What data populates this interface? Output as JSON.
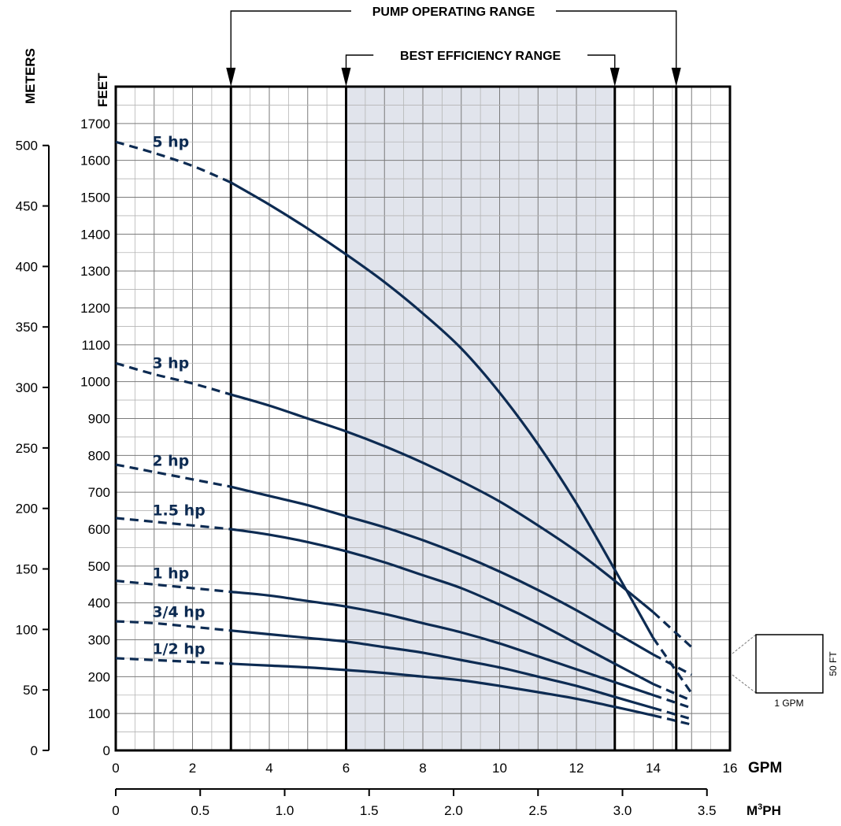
{
  "chart_data": {
    "type": "line",
    "x_axis": {
      "label": "GPM",
      "min": 0,
      "max": 16,
      "ticks": [
        0,
        2,
        4,
        6,
        8,
        10,
        12,
        14,
        16
      ]
    },
    "x_axis_secondary": {
      "label_prefix": "M",
      "label_superscript": "3",
      "label_suffix": "PH",
      "ticks": [
        {
          "label": "0",
          "gpm": 0
        },
        {
          "label": "0.5",
          "gpm": 2.2
        },
        {
          "label": "1.0",
          "gpm": 4.4
        },
        {
          "label": "1.5",
          "gpm": 6.6
        },
        {
          "label": "2.0",
          "gpm": 8.8
        },
        {
          "label": "2.5",
          "gpm": 11.0
        },
        {
          "label": "3.0",
          "gpm": 13.2
        },
        {
          "label": "3.5",
          "gpm": 15.4
        }
      ]
    },
    "y_axis": {
      "label": "FEET",
      "min": 0,
      "max": 1800,
      "ticks": [
        0,
        100,
        200,
        300,
        400,
        500,
        600,
        700,
        800,
        900,
        1000,
        1100,
        1200,
        1300,
        1400,
        1500,
        1600,
        1700
      ]
    },
    "y_axis_secondary": {
      "label": "METERS",
      "ticks": [
        0,
        50,
        100,
        150,
        200,
        250,
        300,
        350,
        400,
        450,
        500
      ]
    },
    "grid": true,
    "ranges": [
      {
        "label": "PUMP OPERATING RANGE",
        "from": 3,
        "to": 14.6
      },
      {
        "label": "BEST EFFICIENCY RANGE",
        "from": 6,
        "to": 13,
        "shaded": true
      }
    ],
    "series": [
      {
        "name": "5 hp",
        "dashed_until": 3,
        "dashed_after": 14,
        "points": [
          [
            0,
            1650
          ],
          [
            1,
            1620
          ],
          [
            2,
            1585
          ],
          [
            3,
            1540
          ],
          [
            4,
            1480
          ],
          [
            5,
            1415
          ],
          [
            6,
            1345
          ],
          [
            7,
            1270
          ],
          [
            8,
            1185
          ],
          [
            9,
            1090
          ],
          [
            10,
            970
          ],
          [
            11,
            830
          ],
          [
            12,
            670
          ],
          [
            13,
            490
          ],
          [
            14,
            305
          ],
          [
            15,
            155
          ]
        ]
      },
      {
        "name": "3 hp",
        "dashed_until": 3,
        "dashed_after": 14,
        "points": [
          [
            0,
            1050
          ],
          [
            1,
            1020
          ],
          [
            2,
            995
          ],
          [
            3,
            965
          ],
          [
            4,
            935
          ],
          [
            5,
            900
          ],
          [
            6,
            865
          ],
          [
            7,
            825
          ],
          [
            8,
            780
          ],
          [
            9,
            730
          ],
          [
            10,
            675
          ],
          [
            11,
            610
          ],
          [
            12,
            540
          ],
          [
            13,
            460
          ],
          [
            14,
            375
          ],
          [
            15,
            280
          ]
        ]
      },
      {
        "name": "2 hp",
        "dashed_until": 3,
        "dashed_after": 14,
        "points": [
          [
            0,
            775
          ],
          [
            1,
            755
          ],
          [
            2,
            735
          ],
          [
            3,
            715
          ],
          [
            4,
            690
          ],
          [
            5,
            665
          ],
          [
            6,
            635
          ],
          [
            7,
            605
          ],
          [
            8,
            570
          ],
          [
            9,
            530
          ],
          [
            10,
            485
          ],
          [
            11,
            435
          ],
          [
            12,
            380
          ],
          [
            13,
            320
          ],
          [
            14,
            260
          ],
          [
            15,
            205
          ]
        ]
      },
      {
        "name": "1.5 hp",
        "dashed_until": 3,
        "dashed_after": 14,
        "points": [
          [
            0,
            630
          ],
          [
            1,
            620
          ],
          [
            2,
            610
          ],
          [
            3,
            600
          ],
          [
            4,
            585
          ],
          [
            5,
            565
          ],
          [
            6,
            540
          ],
          [
            7,
            510
          ],
          [
            8,
            475
          ],
          [
            9,
            440
          ],
          [
            10,
            395
          ],
          [
            11,
            345
          ],
          [
            12,
            290
          ],
          [
            13,
            235
          ],
          [
            14,
            180
          ],
          [
            15,
            135
          ]
        ]
      },
      {
        "name": "1 hp",
        "dashed_until": 3,
        "dashed_after": 14,
        "points": [
          [
            0,
            460
          ],
          [
            1,
            450
          ],
          [
            2,
            440
          ],
          [
            3,
            430
          ],
          [
            4,
            420
          ],
          [
            5,
            405
          ],
          [
            6,
            390
          ],
          [
            7,
            370
          ],
          [
            8,
            345
          ],
          [
            9,
            320
          ],
          [
            10,
            290
          ],
          [
            11,
            255
          ],
          [
            12,
            220
          ],
          [
            13,
            185
          ],
          [
            14,
            150
          ],
          [
            15,
            115
          ]
        ]
      },
      {
        "name": "3/4 hp",
        "dashed_until": 3,
        "dashed_after": 14,
        "points": [
          [
            0,
            350
          ],
          [
            1,
            345
          ],
          [
            2,
            335
          ],
          [
            3,
            325
          ],
          [
            4,
            315
          ],
          [
            5,
            305
          ],
          [
            6,
            295
          ],
          [
            7,
            280
          ],
          [
            8,
            265
          ],
          [
            9,
            245
          ],
          [
            10,
            225
          ],
          [
            11,
            200
          ],
          [
            12,
            175
          ],
          [
            13,
            145
          ],
          [
            14,
            115
          ],
          [
            15,
            85
          ]
        ]
      },
      {
        "name": "1/2 hp",
        "dashed_until": 3,
        "dashed_after": 14,
        "points": [
          [
            0,
            250
          ],
          [
            1,
            245
          ],
          [
            2,
            240
          ],
          [
            3,
            235
          ],
          [
            4,
            230
          ],
          [
            5,
            225
          ],
          [
            6,
            218
          ],
          [
            7,
            210
          ],
          [
            8,
            200
          ],
          [
            9,
            190
          ],
          [
            10,
            175
          ],
          [
            11,
            158
          ],
          [
            12,
            140
          ],
          [
            13,
            118
          ],
          [
            14,
            95
          ],
          [
            15,
            70
          ]
        ]
      }
    ],
    "scale_legend": {
      "width_label": "1 GPM",
      "height_label": "50 FT"
    }
  },
  "colors": {
    "curve": "#0d2b52",
    "grid_major": "#7a7a7a",
    "grid_minor": "#b5b5b5",
    "shade": "#e1e4ec",
    "border": "#000000"
  }
}
